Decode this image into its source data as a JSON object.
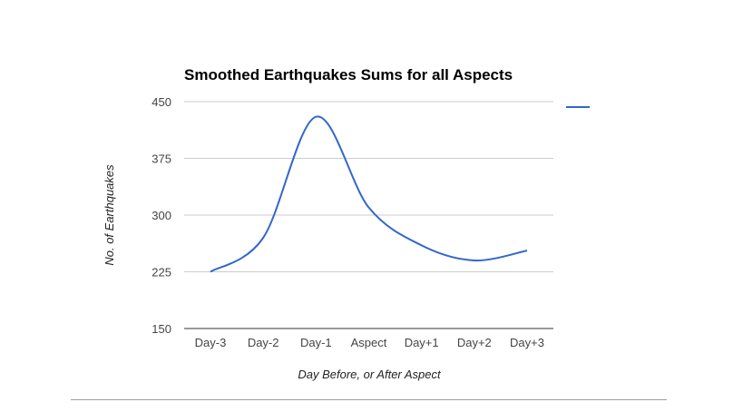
{
  "chart_data": {
    "type": "line",
    "title": "Smoothed Earthquakes Sums for all Aspects",
    "xlabel": "Day Before, or After Aspect",
    "ylabel": "No. of Earthquakes",
    "categories": [
      "Day-3",
      "Day-2",
      "Day-1",
      "Aspect",
      "Day+1",
      "Day+2",
      "Day+3"
    ],
    "series": [
      {
        "values": [
          225,
          270,
          430,
          310,
          260,
          240,
          253
        ],
        "color": "#3366cc"
      }
    ],
    "ylim": [
      150,
      450
    ],
    "yticks": [
      150,
      225,
      300,
      375,
      450
    ],
    "grid": true,
    "smooth": true,
    "legend_position": "right"
  }
}
